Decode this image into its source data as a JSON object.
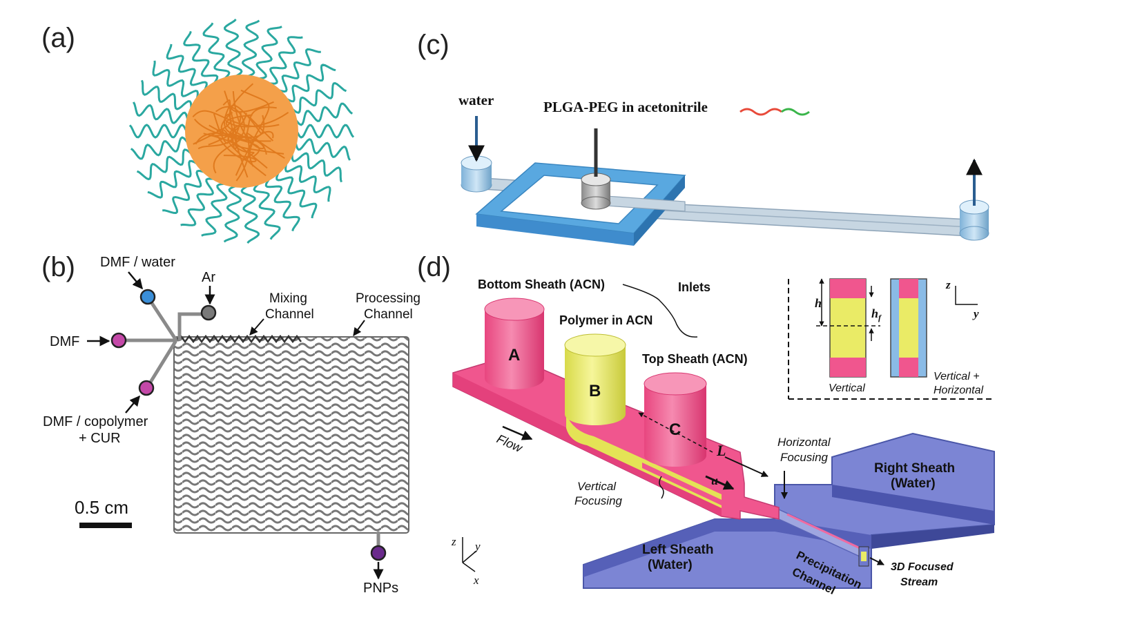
{
  "panel_labels": {
    "a": "(a)",
    "b": "(b)",
    "c": "(c)",
    "d": "(d)"
  },
  "panel_b": {
    "dmf_water": "DMF / water",
    "ar": "Ar",
    "dmf": "DMF",
    "dmf_copolymer": "DMF / copolymer",
    "cur": "+ CUR",
    "mixing_1": "Mixing",
    "mixing_2": "Channel",
    "processing_1": "Processing",
    "processing_2": "Channel",
    "scale": "0.5 cm",
    "pnps": "PNPs"
  },
  "panel_c": {
    "water": "water",
    "plga": "PLGA-PEG in acetonitrile"
  },
  "panel_d": {
    "bottom_sheath": "Bottom Sheath (ACN)",
    "inlets": "Inlets",
    "polymer": "Polymer in ACN",
    "top_sheath": "Top Sheath (ACN)",
    "inlet_a": "A",
    "inlet_b": "B",
    "inlet_c": "C",
    "flow": "Flow",
    "length": "L",
    "velocity": "u",
    "vertical_focusing_1": "Vertical",
    "vertical_focusing_2": "Focusing",
    "horizontal_focusing_1": "Horizontal",
    "horizontal_focusing_2": "Focusing",
    "right_sheath_1": "Right Sheath",
    "right_sheath_2": "(Water)",
    "left_sheath_1": "Left Sheath",
    "left_sheath_2": "(Water)",
    "precip_1": "Precipitation",
    "precip_2": "Channel",
    "stream_1": "3D Focused",
    "stream_2": "Stream",
    "inset": {
      "h": "h",
      "hf": "h",
      "hf_sub": "f",
      "z": "z",
      "y": "y",
      "vertical": "Vertical",
      "vh_1": "Vertical +",
      "vh_2": "Horizontal"
    },
    "axes": {
      "z": "z",
      "y": "y",
      "x": "x"
    }
  },
  "colors": {
    "teal": "#2aa8a0",
    "orange": "#f4a04a",
    "pink": "#f0568e",
    "yellow": "#eaeb66",
    "blue_channel": "#6f79cc",
    "light_blue": "#7fb8e0"
  }
}
